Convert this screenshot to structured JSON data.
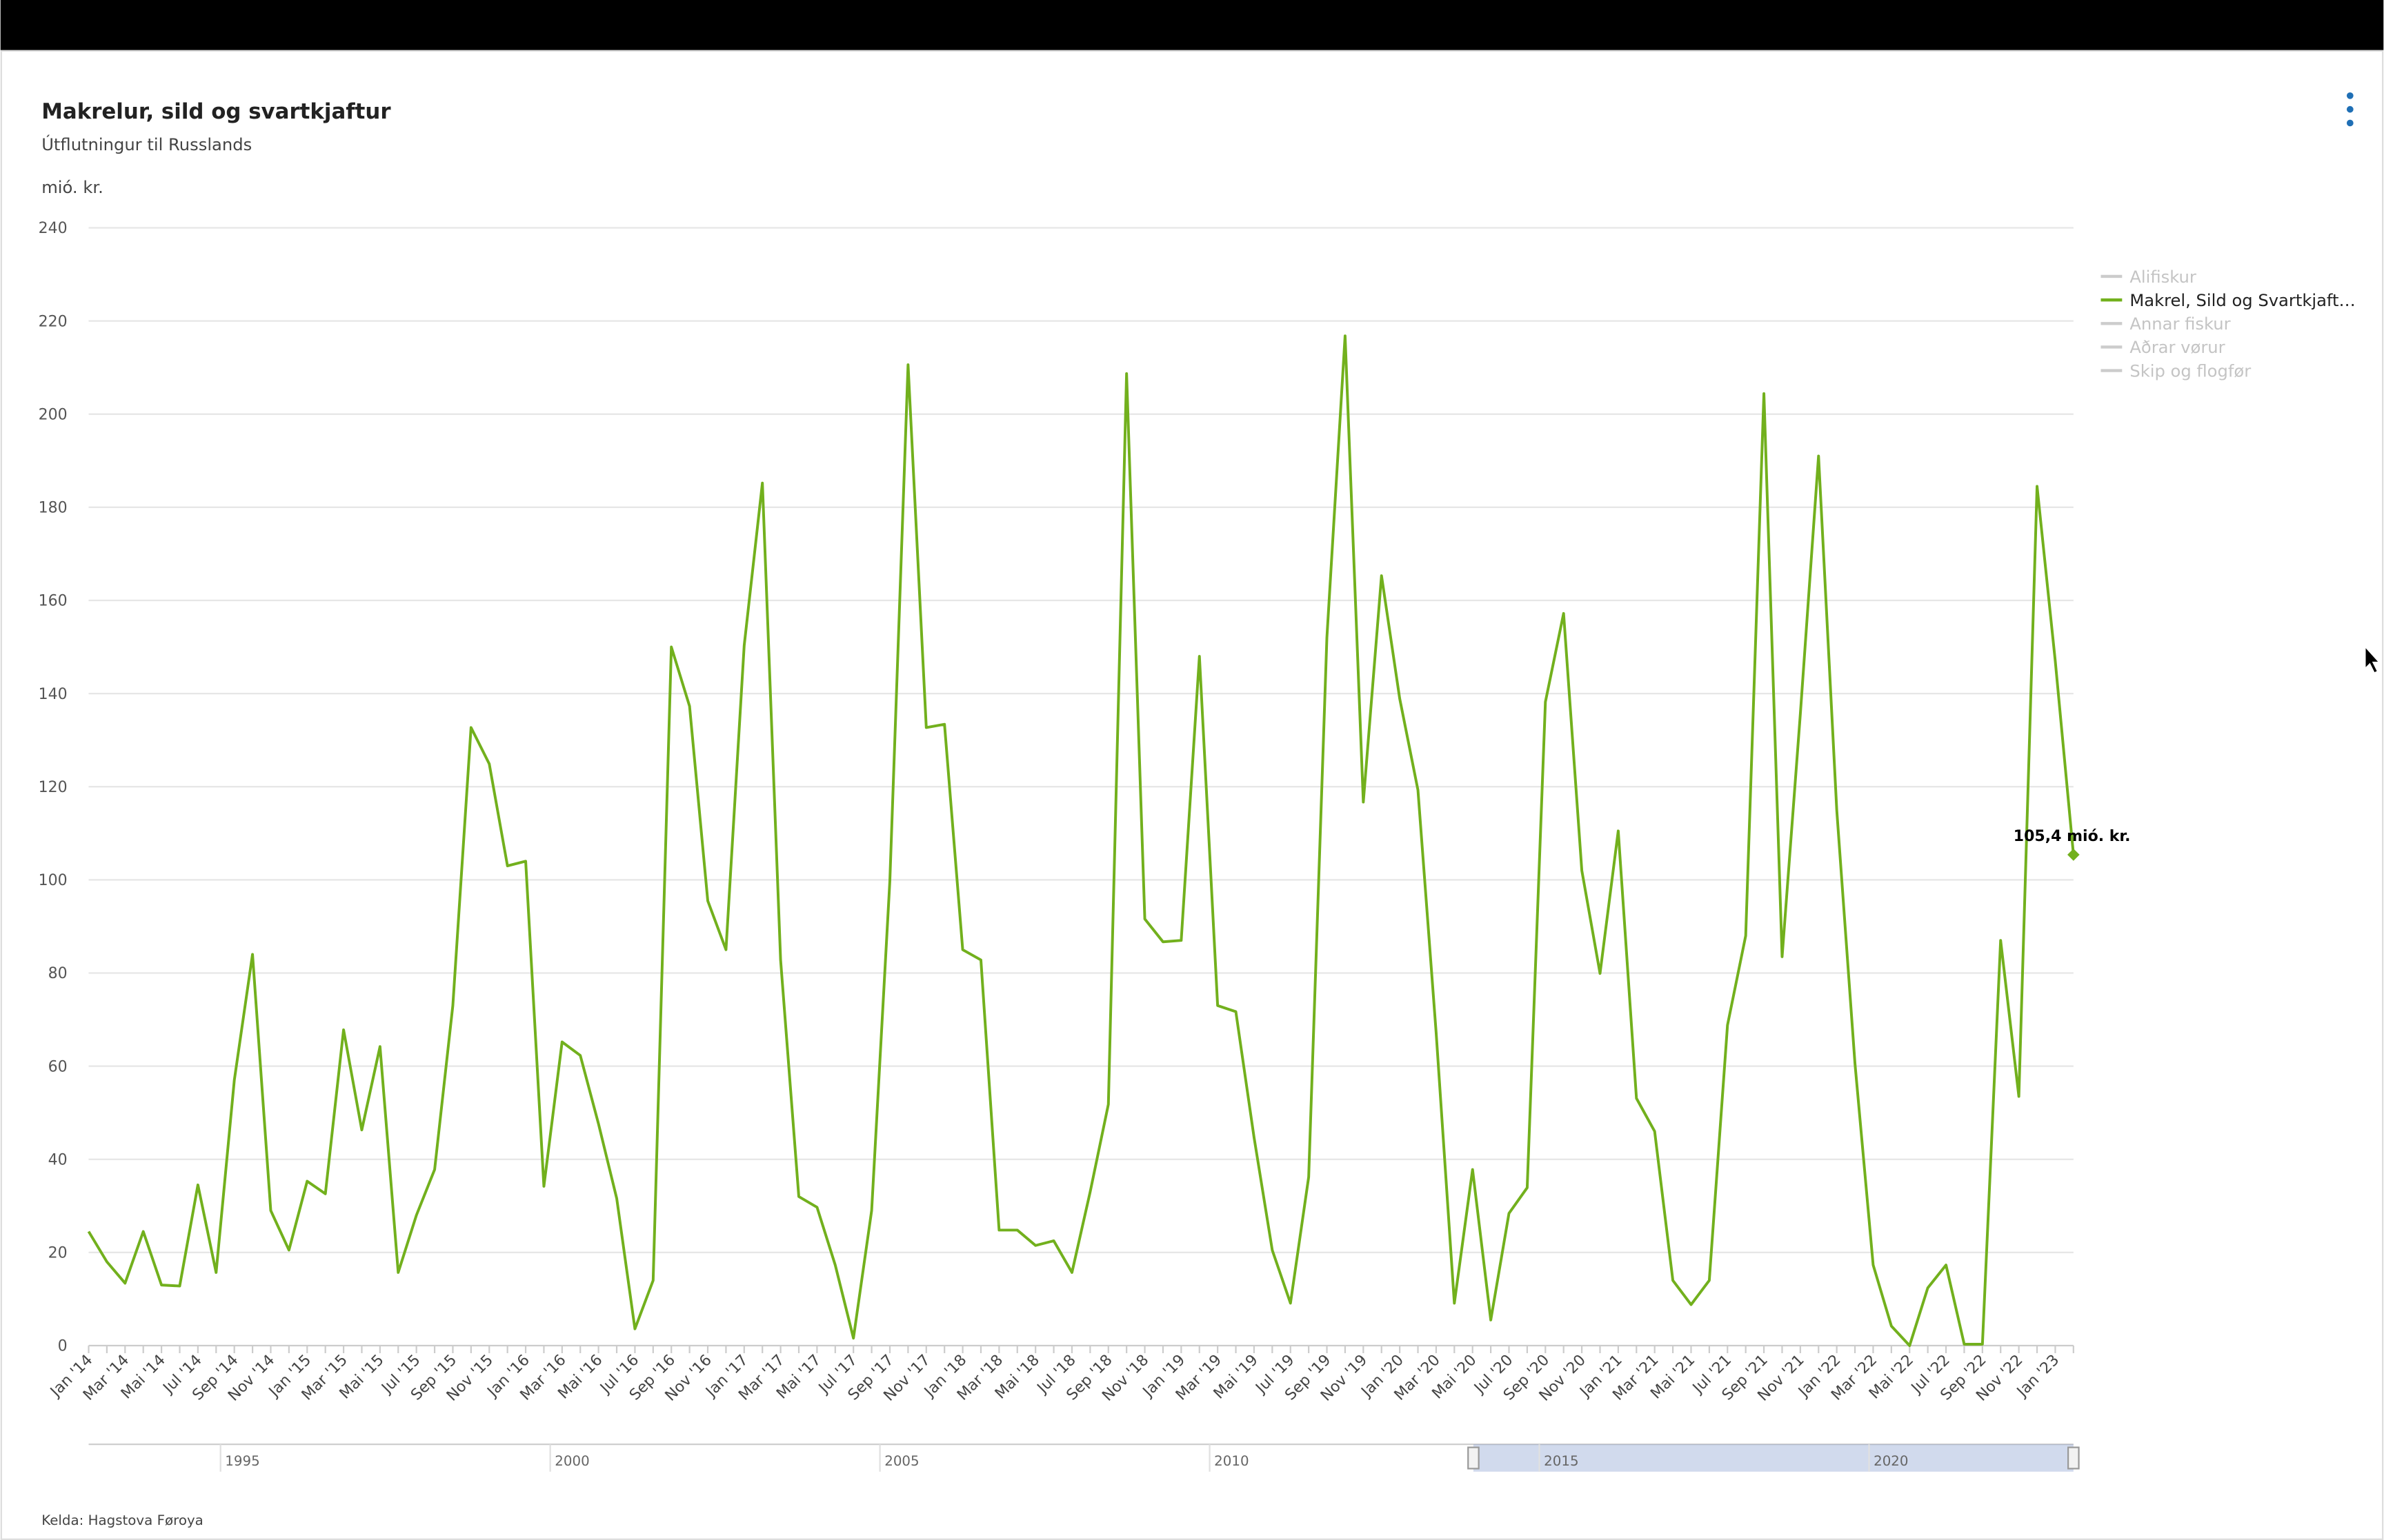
{
  "chart_data": {
    "type": "line",
    "title": "Makrelur, sild og svartkjaftur",
    "subtitle": "Útflutningur til Russlands",
    "y_axis_label": "mió. kr.",
    "source": "Kelda: Hagstova Føroya",
    "categories": [
      "Jan '14",
      null,
      "Mar '14",
      null,
      "Mai '14",
      null,
      "Jul '14",
      null,
      "Sep '14",
      null,
      "Nov '14",
      null,
      "Jan '15",
      null,
      "Mar '15",
      null,
      "Mai '15",
      null,
      "Jul '15",
      null,
      "Sep '15",
      null,
      "Nov '15",
      null,
      "Jan '16",
      null,
      "Mar '16",
      null,
      "Mai '16",
      null,
      "Jul '16",
      null,
      "Sep '16",
      null,
      "Nov '16",
      null,
      "Jan '17",
      null,
      "Mar '17",
      null,
      "Mai '17",
      null,
      "Jul '17",
      null,
      "Sep '17",
      null,
      "Nov '17",
      null,
      "Jan '18",
      null,
      "Mar '18",
      null,
      "Mai '18",
      null,
      "Jul '18",
      null,
      "Sep '18",
      null,
      "Nov '18",
      null,
      "Jan '19",
      null,
      "Mar '19",
      null,
      "Mai '19",
      null,
      "Jul '19",
      null,
      "Sep '19",
      null,
      "Nov '19",
      null,
      "Jan '20",
      null,
      "Mar '20",
      null,
      "Mai '20",
      null,
      "Jul '20",
      null,
      "Sep '20",
      null,
      "Nov '20",
      null,
      "Jan '21",
      null,
      "Mar '21",
      null,
      "Mai '21",
      null,
      "Jul '21",
      null,
      "Sep '21",
      null,
      "Nov '21",
      null,
      "Jan '22",
      null,
      "Mar '22",
      null,
      "Mai '22",
      null,
      "Jul '22",
      null,
      "Sep '22",
      null,
      "Nov '22",
      null,
      "Jan '23",
      null
    ],
    "series": [
      {
        "color": "#72b01d",
        "values": [
          24.5,
          18,
          13.4,
          24.5,
          13,
          12.8,
          34.5,
          15.7,
          57,
          84,
          29,
          20.5,
          35.3,
          32.6,
          67.8,
          46.3,
          64.2,
          15.7,
          28,
          37.8,
          73,
          132.7,
          124.9,
          103,
          104,
          34.2,
          65.2,
          62.3,
          47.6,
          31.6,
          3.6,
          14,
          150,
          137.3,
          95.5,
          85,
          150.3,
          185.2,
          82.8,
          32,
          29.7,
          17.3,
          1.6,
          29,
          99.8,
          210.6,
          132.7,
          133.4,
          85,
          82.8,
          24.8,
          24.8,
          21.5,
          22.5,
          15.7,
          33,
          51.8,
          208.7,
          91.6,
          86.7,
          87,
          148,
          73,
          71.7,
          44.7,
          20.5,
          9.1,
          36.2,
          152,
          216.8,
          116.7,
          165.3,
          138.9,
          119.3,
          67.2,
          9.1,
          37.8,
          5.5,
          28.4,
          33.9,
          138.2,
          157.2,
          102,
          79.9,
          110.5,
          53.1,
          46,
          14,
          8.8,
          14,
          68.8,
          88,
          204.4,
          83.5,
          135.6,
          191,
          115,
          60.6,
          17.3,
          4.2,
          0,
          12.4,
          17.3,
          0.3,
          0.3,
          87,
          53.5,
          184.5,
          147,
          105.4
        ],
        "value_labels": [
          null,
          null,
          null,
          null,
          null,
          null,
          null,
          null,
          null,
          null,
          null,
          null,
          null,
          null,
          null,
          null,
          null,
          null,
          null,
          null,
          null,
          null,
          null,
          null,
          null,
          null,
          null,
          null,
          null,
          null,
          null,
          null,
          null,
          null,
          null,
          null,
          null,
          null,
          null,
          null,
          null,
          null,
          null,
          null,
          null,
          null,
          null,
          null,
          null,
          null,
          null,
          null,
          null,
          null,
          null,
          null,
          null,
          null,
          null,
          null,
          null,
          null,
          null,
          null,
          null,
          null,
          null,
          null,
          null,
          null,
          null,
          null,
          null,
          null,
          null,
          null,
          null,
          null,
          null,
          null,
          null,
          null,
          null,
          null,
          null,
          null,
          null,
          null,
          null,
          null,
          null,
          null,
          null,
          null,
          null,
          null,
          null,
          null,
          null,
          null,
          null,
          null,
          null,
          null,
          null,
          null,
          null,
          null,
          null,
          "105,4 mió. kr."
        ]
      }
    ],
    "legend": [
      {
        "name": "Alifiskur",
        "visible": false
      },
      {
        "name": "Makrel, Sild og Svartkjaft…",
        "visible": true
      },
      {
        "name": "Annar fiskur",
        "visible": false
      },
      {
        "name": "Aðrar vørur",
        "visible": false
      },
      {
        "name": "Skip og flogfør",
        "visible": false
      }
    ],
    "ylim": [
      0,
      240
    ],
    "yticks": [
      0,
      20,
      40,
      60,
      80,
      100,
      120,
      140,
      160,
      180,
      200,
      220,
      240
    ],
    "grid": true,
    "navigator": {
      "xlim": [
        1993,
        2023.1
      ],
      "xticks": [
        1995,
        2000,
        2005,
        2010,
        2015,
        2020
      ],
      "selection": [
        2014,
        2023.1
      ]
    }
  }
}
